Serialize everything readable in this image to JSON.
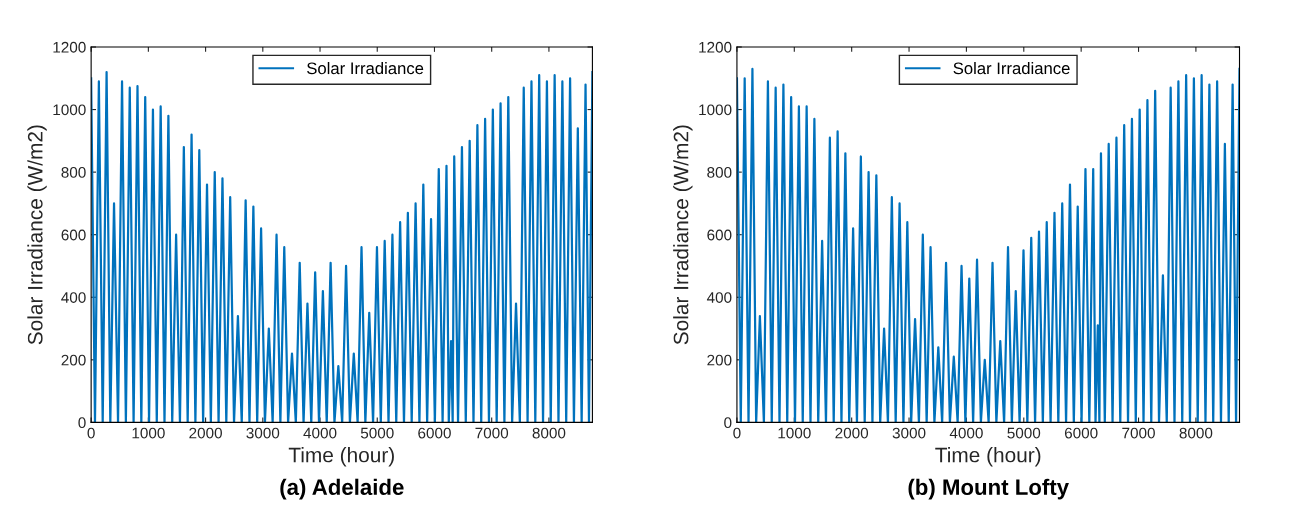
{
  "chart_data": [
    {
      "type": "line",
      "title": "(a) Adelaide",
      "xlabel": "Time (hour)",
      "ylabel": "Solar Irradiance (W/m2)",
      "xlim": [
        0,
        8760
      ],
      "ylim": [
        0,
        1200
      ],
      "xticks": [
        0,
        1000,
        2000,
        3000,
        4000,
        5000,
        6000,
        7000,
        8000
      ],
      "yticks": [
        0,
        200,
        400,
        600,
        800,
        1000,
        1200
      ],
      "grid": false,
      "legend": "top",
      "marker": "none",
      "line_style": "solid",
      "series": [
        {
          "name": "Solar Irradiance",
          "color": "#0072bd",
          "x": [
            0,
            67,
            135,
            202,
            270,
            335,
            400,
            470,
            540,
            607,
            675,
            742,
            810,
            877,
            945,
            1012,
            1080,
            1147,
            1215,
            1282,
            1350,
            1417,
            1485,
            1552,
            1620,
            1687,
            1755,
            1822,
            1890,
            1957,
            2025,
            2092,
            2160,
            2227,
            2295,
            2362,
            2430,
            2497,
            2565,
            2632,
            2700,
            2767,
            2835,
            2902,
            2970,
            3037,
            3105,
            3172,
            3240,
            3307,
            3375,
            3442,
            3510,
            3577,
            3645,
            3712,
            3780,
            3847,
            3915,
            3982,
            4050,
            4117,
            4185,
            4252,
            4320,
            4387,
            4455,
            4522,
            4590,
            4657,
            4725,
            4792,
            4860,
            4927,
            4995,
            5062,
            5130,
            5197,
            5265,
            5332,
            5400,
            5467,
            5535,
            5602,
            5670,
            5737,
            5805,
            5872,
            5940,
            6007,
            6075,
            6142,
            6210,
            6250,
            6290,
            6318,
            6345,
            6412,
            6480,
            6547,
            6615,
            6682,
            6750,
            6817,
            6885,
            6952,
            7020,
            7087,
            7155,
            7222,
            7290,
            7357,
            7425,
            7492,
            7560,
            7627,
            7695,
            7762,
            7830,
            7897,
            7965,
            8032,
            8100,
            8167,
            8235,
            8302,
            8370,
            8437,
            8505,
            8572,
            8640,
            8700,
            8760
          ],
          "values": [
            1100,
            0,
            1090,
            0,
            1120,
            0,
            700,
            0,
            1090,
            0,
            1070,
            0,
            1075,
            0,
            1040,
            0,
            1000,
            0,
            1010,
            0,
            980,
            0,
            600,
            0,
            880,
            0,
            920,
            0,
            870,
            0,
            760,
            0,
            800,
            0,
            780,
            0,
            720,
            0,
            340,
            0,
            710,
            0,
            690,
            0,
            620,
            0,
            300,
            0,
            600,
            0,
            560,
            0,
            220,
            0,
            510,
            0,
            380,
            0,
            480,
            0,
            420,
            0,
            510,
            0,
            180,
            0,
            500,
            0,
            220,
            0,
            560,
            0,
            350,
            0,
            560,
            0,
            580,
            0,
            600,
            0,
            640,
            0,
            670,
            0,
            700,
            0,
            760,
            0,
            650,
            0,
            810,
            0,
            820,
            0,
            260,
            0,
            850,
            0,
            880,
            0,
            900,
            0,
            950,
            0,
            970,
            0,
            1000,
            0,
            1020,
            0,
            1040,
            0,
            380,
            0,
            1070,
            0,
            1090,
            0,
            1110,
            0,
            1090,
            0,
            1110,
            0,
            1090,
            0,
            1100,
            0,
            940,
            0,
            1080,
            0,
            1120
          ]
        }
      ]
    },
    {
      "type": "line",
      "title": "(b) Mount Lofty",
      "xlabel": "Time (hour)",
      "ylabel": "Solar Irradiance (W/m2)",
      "xlim": [
        0,
        8760
      ],
      "ylim": [
        0,
        1200
      ],
      "xticks": [
        0,
        1000,
        2000,
        3000,
        4000,
        5000,
        6000,
        7000,
        8000
      ],
      "yticks": [
        0,
        200,
        400,
        600,
        800,
        1000,
        1200
      ],
      "grid": false,
      "legend": "top",
      "marker": "none",
      "line_style": "solid",
      "series": [
        {
          "name": "Solar Irradiance",
          "color": "#0072bd",
          "x": [
            0,
            67,
            135,
            202,
            270,
            335,
            400,
            470,
            540,
            607,
            675,
            742,
            810,
            877,
            945,
            1012,
            1080,
            1147,
            1215,
            1282,
            1350,
            1417,
            1485,
            1552,
            1620,
            1687,
            1755,
            1822,
            1890,
            1957,
            2025,
            2092,
            2160,
            2227,
            2295,
            2362,
            2430,
            2497,
            2565,
            2632,
            2700,
            2767,
            2835,
            2902,
            2970,
            3037,
            3105,
            3172,
            3240,
            3307,
            3375,
            3442,
            3510,
            3577,
            3645,
            3712,
            3780,
            3847,
            3915,
            3982,
            4050,
            4117,
            4185,
            4252,
            4320,
            4387,
            4455,
            4522,
            4590,
            4657,
            4725,
            4792,
            4860,
            4927,
            4995,
            5062,
            5130,
            5197,
            5265,
            5332,
            5400,
            5467,
            5535,
            5602,
            5670,
            5737,
            5805,
            5872,
            5940,
            6007,
            6075,
            6142,
            6210,
            6250,
            6290,
            6318,
            6345,
            6412,
            6480,
            6547,
            6615,
            6682,
            6750,
            6817,
            6885,
            6952,
            7020,
            7087,
            7155,
            7222,
            7290,
            7357,
            7425,
            7492,
            7560,
            7627,
            7695,
            7762,
            7830,
            7897,
            7965,
            8032,
            8100,
            8167,
            8235,
            8302,
            8370,
            8437,
            8505,
            8572,
            8640,
            8700,
            8760
          ],
          "values": [
            1100,
            0,
            1100,
            0,
            1130,
            0,
            340,
            0,
            1090,
            0,
            1070,
            0,
            1080,
            0,
            1040,
            0,
            1010,
            0,
            1010,
            0,
            970,
            0,
            580,
            0,
            910,
            0,
            930,
            0,
            860,
            0,
            620,
            0,
            850,
            0,
            800,
            0,
            790,
            0,
            300,
            0,
            720,
            0,
            700,
            0,
            640,
            0,
            330,
            0,
            600,
            0,
            560,
            0,
            240,
            0,
            510,
            0,
            210,
            0,
            500,
            0,
            460,
            0,
            520,
            0,
            200,
            0,
            510,
            0,
            260,
            0,
            560,
            0,
            420,
            0,
            550,
            0,
            590,
            0,
            610,
            0,
            640,
            0,
            670,
            0,
            700,
            0,
            760,
            0,
            690,
            0,
            810,
            0,
            810,
            0,
            310,
            0,
            860,
            0,
            890,
            0,
            910,
            0,
            950,
            0,
            970,
            0,
            1000,
            0,
            1030,
            0,
            1060,
            0,
            470,
            0,
            1070,
            0,
            1090,
            0,
            1110,
            0,
            1100,
            0,
            1110,
            0,
            1080,
            0,
            1090,
            0,
            890,
            0,
            1080,
            0,
            1130
          ]
        }
      ]
    }
  ]
}
